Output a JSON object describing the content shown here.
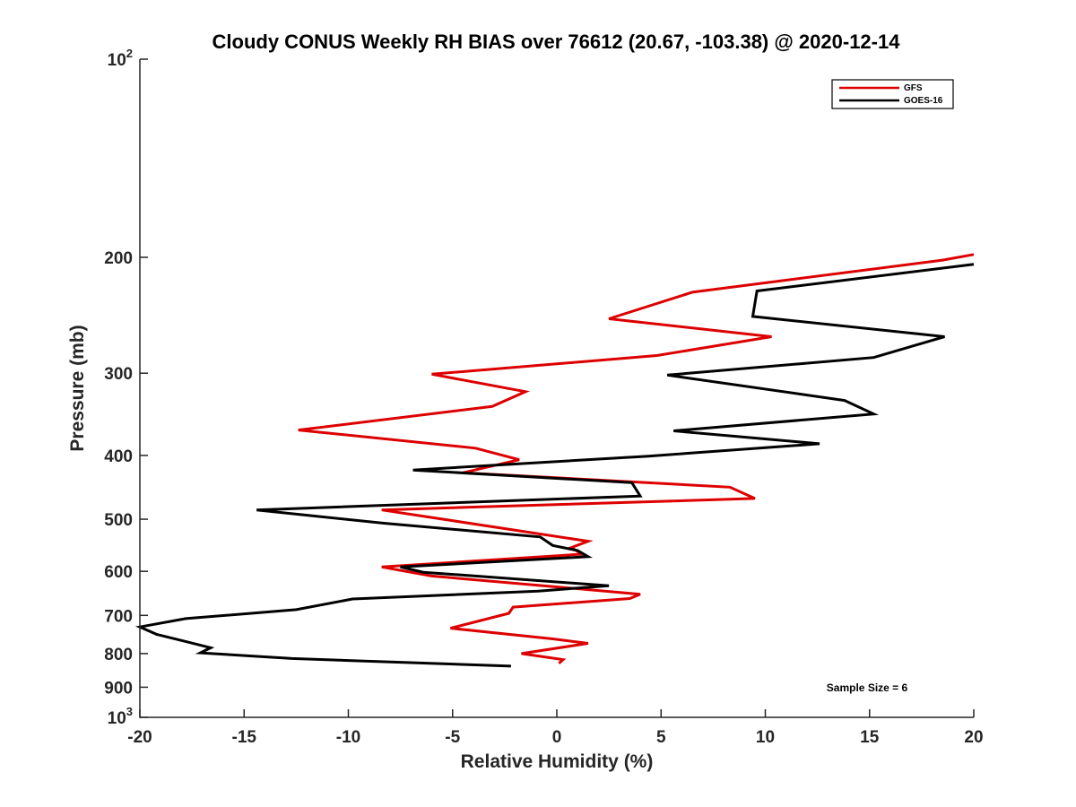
{
  "chart_data": {
    "type": "line",
    "title": "Cloudy CONUS Weekly RH BIAS over 76612 (20.67, -103.38) @ 2020-12-14",
    "xlabel": "Relative Humidity (%)",
    "ylabel": "Pressure (mb)",
    "xlim": [
      -20,
      20
    ],
    "ylim": [
      100,
      1000
    ],
    "y_scale": "log",
    "y_reversed": true,
    "x_ticks": [
      -20,
      -15,
      -10,
      -5,
      0,
      5,
      10,
      15,
      20
    ],
    "x_tick_labels": [
      "-20",
      "-15",
      "-10",
      "-5",
      "0",
      "5",
      "10",
      "15",
      "20"
    ],
    "y_ticks": [
      100,
      200,
      300,
      400,
      500,
      600,
      700,
      800,
      900,
      1000
    ],
    "y_tick_labels": [
      {
        "base": "10",
        "exp": "2"
      },
      {
        "base": "200",
        "exp": ""
      },
      {
        "base": "300",
        "exp": ""
      },
      {
        "base": "400",
        "exp": ""
      },
      {
        "base": "500",
        "exp": ""
      },
      {
        "base": "600",
        "exp": ""
      },
      {
        "base": "700",
        "exp": ""
      },
      {
        "base": "800",
        "exp": ""
      },
      {
        "base": "900",
        "exp": ""
      },
      {
        "base": "10",
        "exp": "3"
      }
    ],
    "legend_position": "top-right",
    "annotation": "Sample Size = 6",
    "series": [
      {
        "name": "GFS",
        "color": "#dd0000",
        "points": [
          [
            20,
            198
          ],
          [
            18.5,
            202
          ],
          [
            6.5,
            226
          ],
          [
            2.5,
            248
          ],
          [
            10.3,
            264
          ],
          [
            4.8,
            282
          ],
          [
            -6.0,
            301
          ],
          [
            -1.5,
            320
          ],
          [
            -3.1,
            337
          ],
          [
            -12.4,
            366
          ],
          [
            -3.9,
            390
          ],
          [
            -1.8,
            406
          ],
          [
            -4.5,
            425
          ],
          [
            8.3,
            447
          ],
          [
            9.5,
            465
          ],
          [
            -8.4,
            484
          ],
          [
            1.5,
            540
          ],
          [
            0.7,
            552
          ],
          [
            1.2,
            565
          ],
          [
            -8.4,
            591
          ],
          [
            -6.0,
            610
          ],
          [
            4.0,
            650
          ],
          [
            3.5,
            660
          ],
          [
            -2.1,
            680
          ],
          [
            -2.3,
            695
          ],
          [
            -5.1,
            732
          ],
          [
            -0.2,
            760
          ],
          [
            1.5,
            772
          ],
          [
            -1.7,
            800
          ],
          [
            0.3,
            817
          ],
          [
            0.1,
            828
          ]
        ]
      },
      {
        "name": "GOES-16",
        "color": "#000000",
        "points": [
          [
            20,
            205
          ],
          [
            9.6,
            225
          ],
          [
            9.4,
            246
          ],
          [
            18.6,
            264
          ],
          [
            15.2,
            284
          ],
          [
            5.3,
            302
          ],
          [
            13.8,
            330
          ],
          [
            15.2,
            346
          ],
          [
            5.6,
            367
          ],
          [
            12.6,
            384
          ],
          [
            4.4,
            401
          ],
          [
            -6.9,
            421
          ],
          [
            3.6,
            440
          ],
          [
            4.0,
            461
          ],
          [
            -14.4,
            484
          ],
          [
            -8.3,
            507
          ],
          [
            -0.8,
            532
          ],
          [
            -0.2,
            548
          ],
          [
            1.0,
            558
          ],
          [
            1.5,
            570
          ],
          [
            -7.5,
            591
          ],
          [
            -6.4,
            602
          ],
          [
            2.5,
            631
          ],
          [
            -0.9,
            643
          ],
          [
            -9.8,
            661
          ],
          [
            -12.5,
            686
          ],
          [
            -17.8,
            708
          ],
          [
            -20,
            729
          ],
          [
            -19.2,
            748
          ],
          [
            -17.8,
            767
          ],
          [
            -16.6,
            784
          ],
          [
            -17.1,
            798
          ],
          [
            -12.7,
            814
          ],
          [
            -2.2,
            836
          ]
        ]
      }
    ]
  }
}
